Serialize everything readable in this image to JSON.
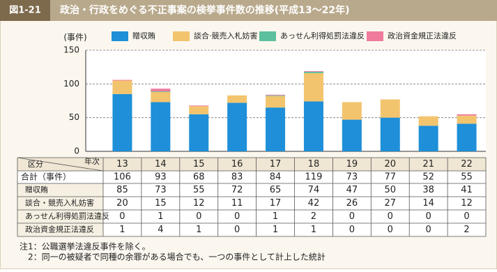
{
  "header": {
    "figure_no": "図1-21",
    "title": "政治・行政をめぐる不正事案の検挙事件数の推移(平成13～22年)"
  },
  "chart_data": {
    "type": "bar",
    "stacked": true,
    "y_label": "(事件)",
    "categories": [
      "13",
      "14",
      "15",
      "16",
      "17",
      "18",
      "19",
      "20",
      "21",
      "22"
    ],
    "series": [
      {
        "name": "贈収賄",
        "color": "#1e8fd8",
        "values": [
          85,
          73,
          55,
          72,
          65,
          74,
          47,
          50,
          38,
          41
        ]
      },
      {
        "name": "談合·競売入札妨害",
        "color": "#f3c46e",
        "values": [
          20,
          15,
          12,
          11,
          17,
          42,
          26,
          27,
          14,
          12
        ]
      },
      {
        "name": "あっせん利得処罰法違反",
        "color": "#5cbf9d",
        "values": [
          0,
          1,
          0,
          0,
          1,
          2,
          0,
          0,
          0,
          0
        ]
      },
      {
        "name": "政治資金規正法違反",
        "color": "#ef7a9c",
        "values": [
          1,
          4,
          1,
          0,
          1,
          1,
          0,
          0,
          0,
          2
        ]
      }
    ],
    "ylim": [
      0,
      150
    ],
    "yticks": [
      0,
      50,
      100,
      150
    ],
    "grid": true,
    "legend": "top"
  },
  "table": {
    "corner_top": "年次",
    "corner_bottom": "区分",
    "total_label": "合計（事件）",
    "totals": [
      106,
      93,
      68,
      83,
      84,
      119,
      73,
      77,
      52,
      55
    ],
    "row_labels": [
      "贈収賄",
      "談合・競売入札妨害",
      "あっせん利得処罰法違反",
      "政治資金規正法違反"
    ]
  },
  "notes": [
    "注1：公職選挙法違反事件を除く。",
    "2：同一の被疑者で同種の余罪がある場合でも、一つの事件として計上した統計"
  ]
}
